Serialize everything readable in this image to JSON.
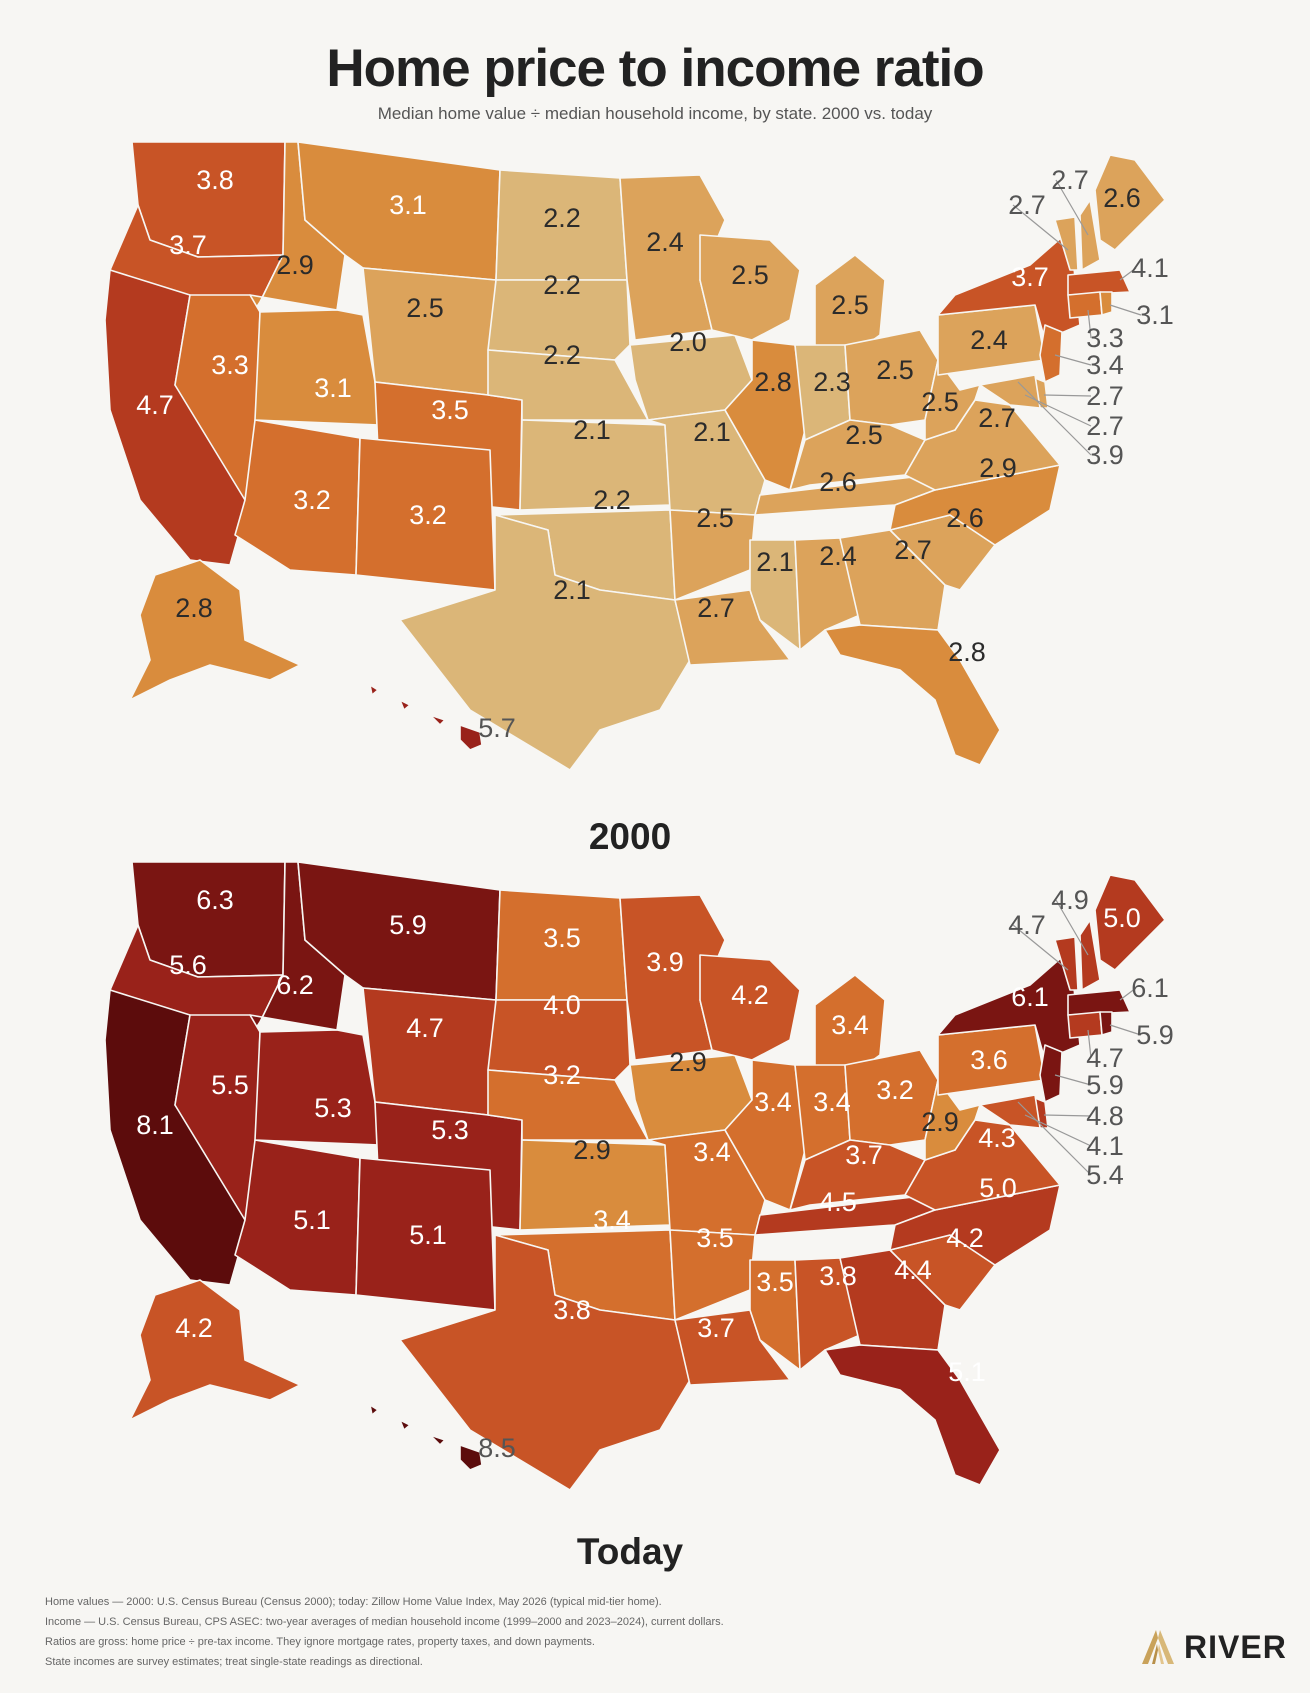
{
  "header": {
    "title": "Home price to income ratio",
    "subtitle": "Median home value ÷ median household income, by state. 2000 vs. today"
  },
  "colors": {
    "scale": [
      "#dbb678",
      "#dca35b",
      "#d98c3d",
      "#d46f2d",
      "#c85426",
      "#b43a1f",
      "#99221a",
      "#7a1512",
      "#5c0c0c"
    ],
    "background": "#f7f6f3"
  },
  "maps": [
    {
      "label": "2000",
      "values": {
        "WA": "3.8",
        "OR": "3.7",
        "CA": "4.7",
        "ID": "2.9",
        "NV": "3.3",
        "MT": "3.1",
        "WY": "2.5",
        "UT": "3.1",
        "CO": "3.5",
        "AZ": "3.2",
        "NM": "3.2",
        "ND": "2.2",
        "SD": "2.2",
        "NE": "2.2",
        "KS": "2.1",
        "OK": "2.2",
        "TX": "2.1",
        "MN": "2.4",
        "IA": "2.0",
        "MO": "2.1",
        "AR": "2.5",
        "LA": "2.7",
        "WI": "2.5",
        "IL": "2.8",
        "MI": "2.5",
        "IN": "2.3",
        "OH": "2.5",
        "KY": "2.5",
        "TN": "2.6",
        "MS": "2.1",
        "AL": "2.4",
        "GA": "2.7",
        "FL": "2.8",
        "SC": "2.6",
        "NC": "2.9",
        "VA": "2.7",
        "WV": "2.5",
        "PA": "2.4",
        "NY": "3.7",
        "AK": "2.8",
        "HI": "5.7",
        "VT": "2.7",
        "NH": "2.7",
        "ME": "2.6",
        "MA": "4.1",
        "RI": "3.1",
        "CT": "3.3",
        "NJ": "3.4",
        "DE": "2.7",
        "MD": "2.7",
        "DC": "3.9"
      }
    },
    {
      "label": "Today",
      "values": {
        "WA": "6.3",
        "OR": "5.6",
        "CA": "8.1",
        "ID": "6.2",
        "NV": "5.5",
        "MT": "5.9",
        "WY": "4.7",
        "UT": "5.3",
        "CO": "5.3",
        "AZ": "5.1",
        "NM": "5.1",
        "ND": "3.5",
        "SD": "4.0",
        "NE": "3.2",
        "KS": "2.9",
        "OK": "3.4",
        "TX": "3.8",
        "MN": "3.9",
        "IA": "2.9",
        "MO": "3.4",
        "AR": "3.5",
        "LA": "3.7",
        "WI": "4.2",
        "IL": "3.4",
        "MI": "3.4",
        "IN": "3.4",
        "OH": "3.2",
        "KY": "3.7",
        "TN": "4.5",
        "MS": "3.5",
        "AL": "3.8",
        "GA": "4.4",
        "FL": "5.1",
        "SC": "4.2",
        "NC": "5.0",
        "VA": "4.3",
        "WV": "2.9",
        "PA": "3.6",
        "NY": "6.1",
        "AK": "4.2",
        "HI": "8.5",
        "VT": "4.7",
        "NH": "4.9",
        "ME": "5.0",
        "MA": "6.1",
        "RI": "5.9",
        "CT": "4.7",
        "NJ": "5.9",
        "DE": "4.8",
        "MD": "4.1",
        "DC": "5.4"
      }
    }
  ],
  "footnotes": [
    "Home values — 2000: U.S. Census Bureau (Census 2000); today: Zillow Home Value Index, May 2026 (typical mid-tier home).",
    "Income — U.S. Census Bureau, CPS ASEC: two-year averages of median household income (1999–2000 and 2023–2024), current dollars.",
    "Ratios are gross: home price ÷ pre-tax income. They ignore mortgage rates, property taxes, and down payments.",
    "State incomes are survey estimates; treat single-state readings as directional."
  ],
  "brand": {
    "name": "RIVER",
    "logo_icon": "river-logo-icon"
  }
}
